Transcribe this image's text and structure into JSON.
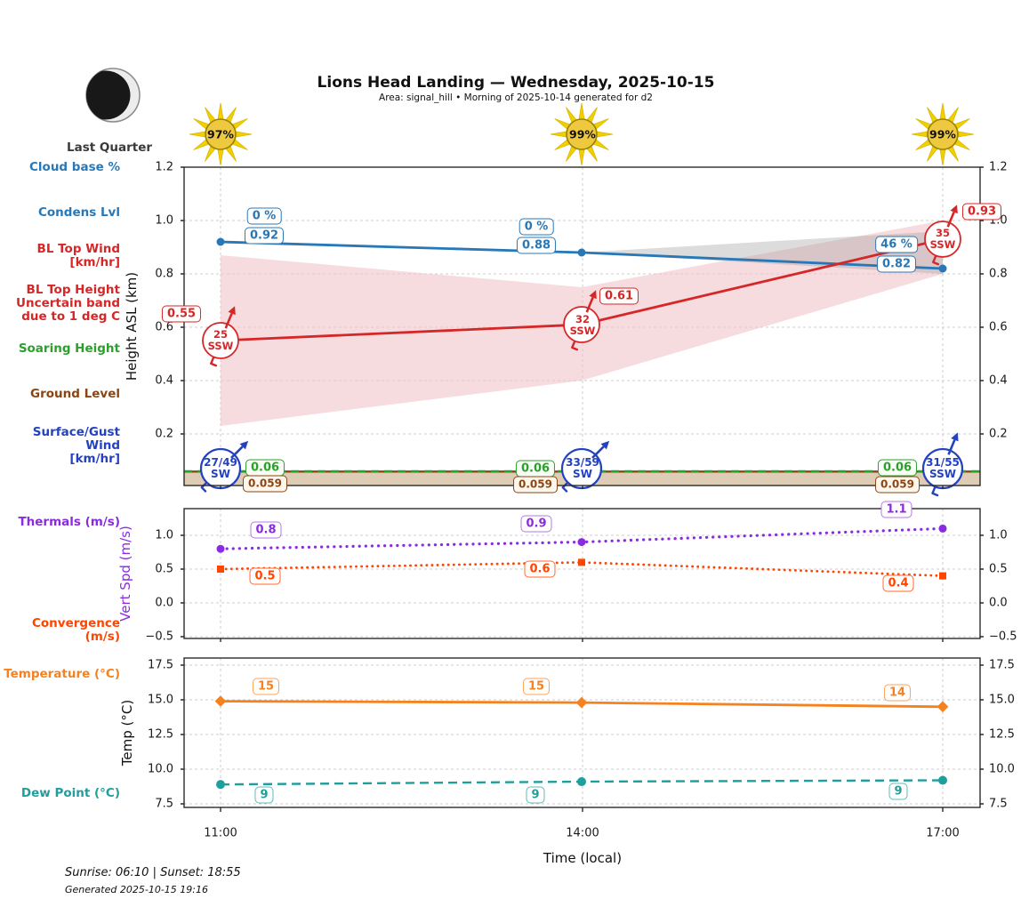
{
  "header": {
    "title": "Lions Head Landing — Wednesday, 2025-10-15",
    "subtitle": "Area: signal_hill • Morning of 2025-10-14 generated for d2"
  },
  "moon": {
    "phase_label": "Last Quarter"
  },
  "suns": {
    "percents": [
      "97%",
      "99%",
      "99%"
    ]
  },
  "left_labels": {
    "cloud_base": "Cloud base %",
    "condens_lvl": "Condens Lvl",
    "bl_top_wind_1": "BL Top Wind",
    "bl_top_wind_2": "[km/hr]",
    "bl_band_1": "BL Top Height",
    "bl_band_2": "Uncertain band",
    "bl_band_3": "due to 1 deg C",
    "soaring_height": "Soaring Height",
    "ground_level": "Ground Level",
    "surface_wind_1": "Surface/Gust Wind",
    "surface_wind_2": "[km/hr]",
    "thermals": "Thermals (m/s)",
    "convergence": "Convergence (m/s)",
    "temperature": "Temperature (°C)",
    "dew_point": "Dew Point (°C)"
  },
  "axes": {
    "height_ylabel": "Height ASL (km)",
    "vertspd_ylabel": "Vert Spd (m/s)",
    "temp_ylabel": "Temp (°C)",
    "xlabel": "Time (local)",
    "x_ticks": [
      "11:00",
      "14:00",
      "17:00"
    ],
    "height_yticks": [
      "1.2",
      "1.0",
      "0.8",
      "0.6",
      "0.4",
      "0.2"
    ],
    "vertspd_yticks": [
      "1.0",
      "0.5",
      "0.0",
      "−0.5"
    ],
    "temp_yticks": [
      "17.5",
      "15.0",
      "12.5",
      "10.0",
      "7.5"
    ]
  },
  "footer": {
    "sun_times": "Sunrise: 06:10 | Sunset: 18:55",
    "generated": "Generated 2025-10-15 19:16"
  },
  "colors": {
    "condens_blue": "#2878b8",
    "surface_wind_blue": "#2342c0",
    "bl_red": "#d62728",
    "band_pink": "#f2c4ca",
    "band_gray": "#9a9a9a",
    "soaring_green": "#2ca02c",
    "ground_brown": "#8b4513",
    "ground_fill": "#d9c3a7",
    "thermals_purple": "#8a2be2",
    "convergence_orangered": "#ff4500",
    "temp_orange": "#f5821f",
    "dew_teal": "#1f9e9e",
    "sun_ray_yellow": "#f3cf00",
    "sun_disc_gold": "#eec83e",
    "grid_gray": "#cccccc"
  },
  "chart_data": [
    {
      "id": "height_asl",
      "type": "line",
      "ylabel": "Height ASL (km)",
      "ylim": [
        0,
        1.2
      ],
      "x_hours": [
        11,
        14,
        17
      ],
      "x_labels": [
        "11:00",
        "14:00",
        "17:00"
      ],
      "grid": true,
      "series": [
        {
          "name": "condens_lvl",
          "display": "Condens Lvl",
          "values": [
            0.92,
            0.88,
            0.82
          ],
          "point_labels": [
            "0.92",
            "0.88",
            "0.82"
          ]
        },
        {
          "name": "cloud_base_pct",
          "display": "Cloud base %",
          "values_pct": [
            0,
            0,
            46
          ],
          "point_labels": [
            "0 %",
            "0 %",
            "46 %"
          ]
        },
        {
          "name": "bl_top_height",
          "display": "BL Top Height",
          "values": [
            0.55,
            0.61,
            0.93
          ],
          "point_labels": [
            "0.55",
            "0.61",
            "0.93"
          ]
        },
        {
          "name": "bl_top_wind",
          "display": "BL Top Wind [km/hr]",
          "speeds": [
            "25",
            "32",
            "35"
          ],
          "directions": [
            "SSW",
            "SSW",
            "SSW"
          ]
        },
        {
          "name": "bl_top_uncertainty_band",
          "display": "BL Top Height Uncertain band due to 1 deg C",
          "upper": [
            0.87,
            0.75,
            1.0
          ],
          "lower": [
            0.23,
            0.4,
            0.8
          ]
        },
        {
          "name": "condens_uncertainty_band",
          "x_hours": [
            14,
            17
          ],
          "upper": [
            0.88,
            0.96
          ],
          "lower": [
            0.88,
            0.8
          ]
        },
        {
          "name": "soaring_height",
          "display": "Soaring Height",
          "values": [
            0.06,
            0.06,
            0.06
          ],
          "point_labels": [
            "0.06",
            "0.06",
            "0.06"
          ]
        },
        {
          "name": "ground_level",
          "display": "Ground Level",
          "values": [
            0.059,
            0.059,
            0.059
          ],
          "point_labels": [
            "0.059",
            "0.059",
            "0.059"
          ]
        },
        {
          "name": "surface_gust_wind",
          "display": "Surface/Gust Wind [km/hr]",
          "speed_labels": [
            "27/49",
            "33/59",
            "31/55"
          ],
          "directions": [
            "SW",
            "SW",
            "SSW"
          ]
        }
      ]
    },
    {
      "id": "vert_spd",
      "type": "line",
      "ylabel": "Vert Spd (m/s)",
      "ylim": [
        -0.5,
        1.0
      ],
      "x_hours": [
        11,
        14,
        17
      ],
      "grid": true,
      "series": [
        {
          "name": "thermals",
          "display": "Thermals (m/s)",
          "values": [
            0.8,
            0.9,
            1.1
          ],
          "point_labels": [
            "0.8",
            "0.9",
            "1.1"
          ]
        },
        {
          "name": "convergence",
          "display": "Convergence (m/s)",
          "values": [
            0.5,
            0.6,
            0.4
          ],
          "point_labels": [
            "0.5",
            "0.6",
            "0.4"
          ]
        }
      ]
    },
    {
      "id": "temperature",
      "type": "line",
      "ylabel": "Temp (°C)",
      "ylim": [
        7.5,
        17.5
      ],
      "x_hours": [
        11,
        14,
        17
      ],
      "grid": true,
      "series": [
        {
          "name": "temperature",
          "display": "Temperature (°C)",
          "values": [
            14.9,
            14.8,
            14.5
          ],
          "point_labels": [
            "15",
            "15",
            "14"
          ]
        },
        {
          "name": "dew_point",
          "display": "Dew Point (°C)",
          "values": [
            8.9,
            9.1,
            9.2
          ],
          "point_labels": [
            "9",
            "9",
            "9"
          ]
        }
      ]
    }
  ]
}
